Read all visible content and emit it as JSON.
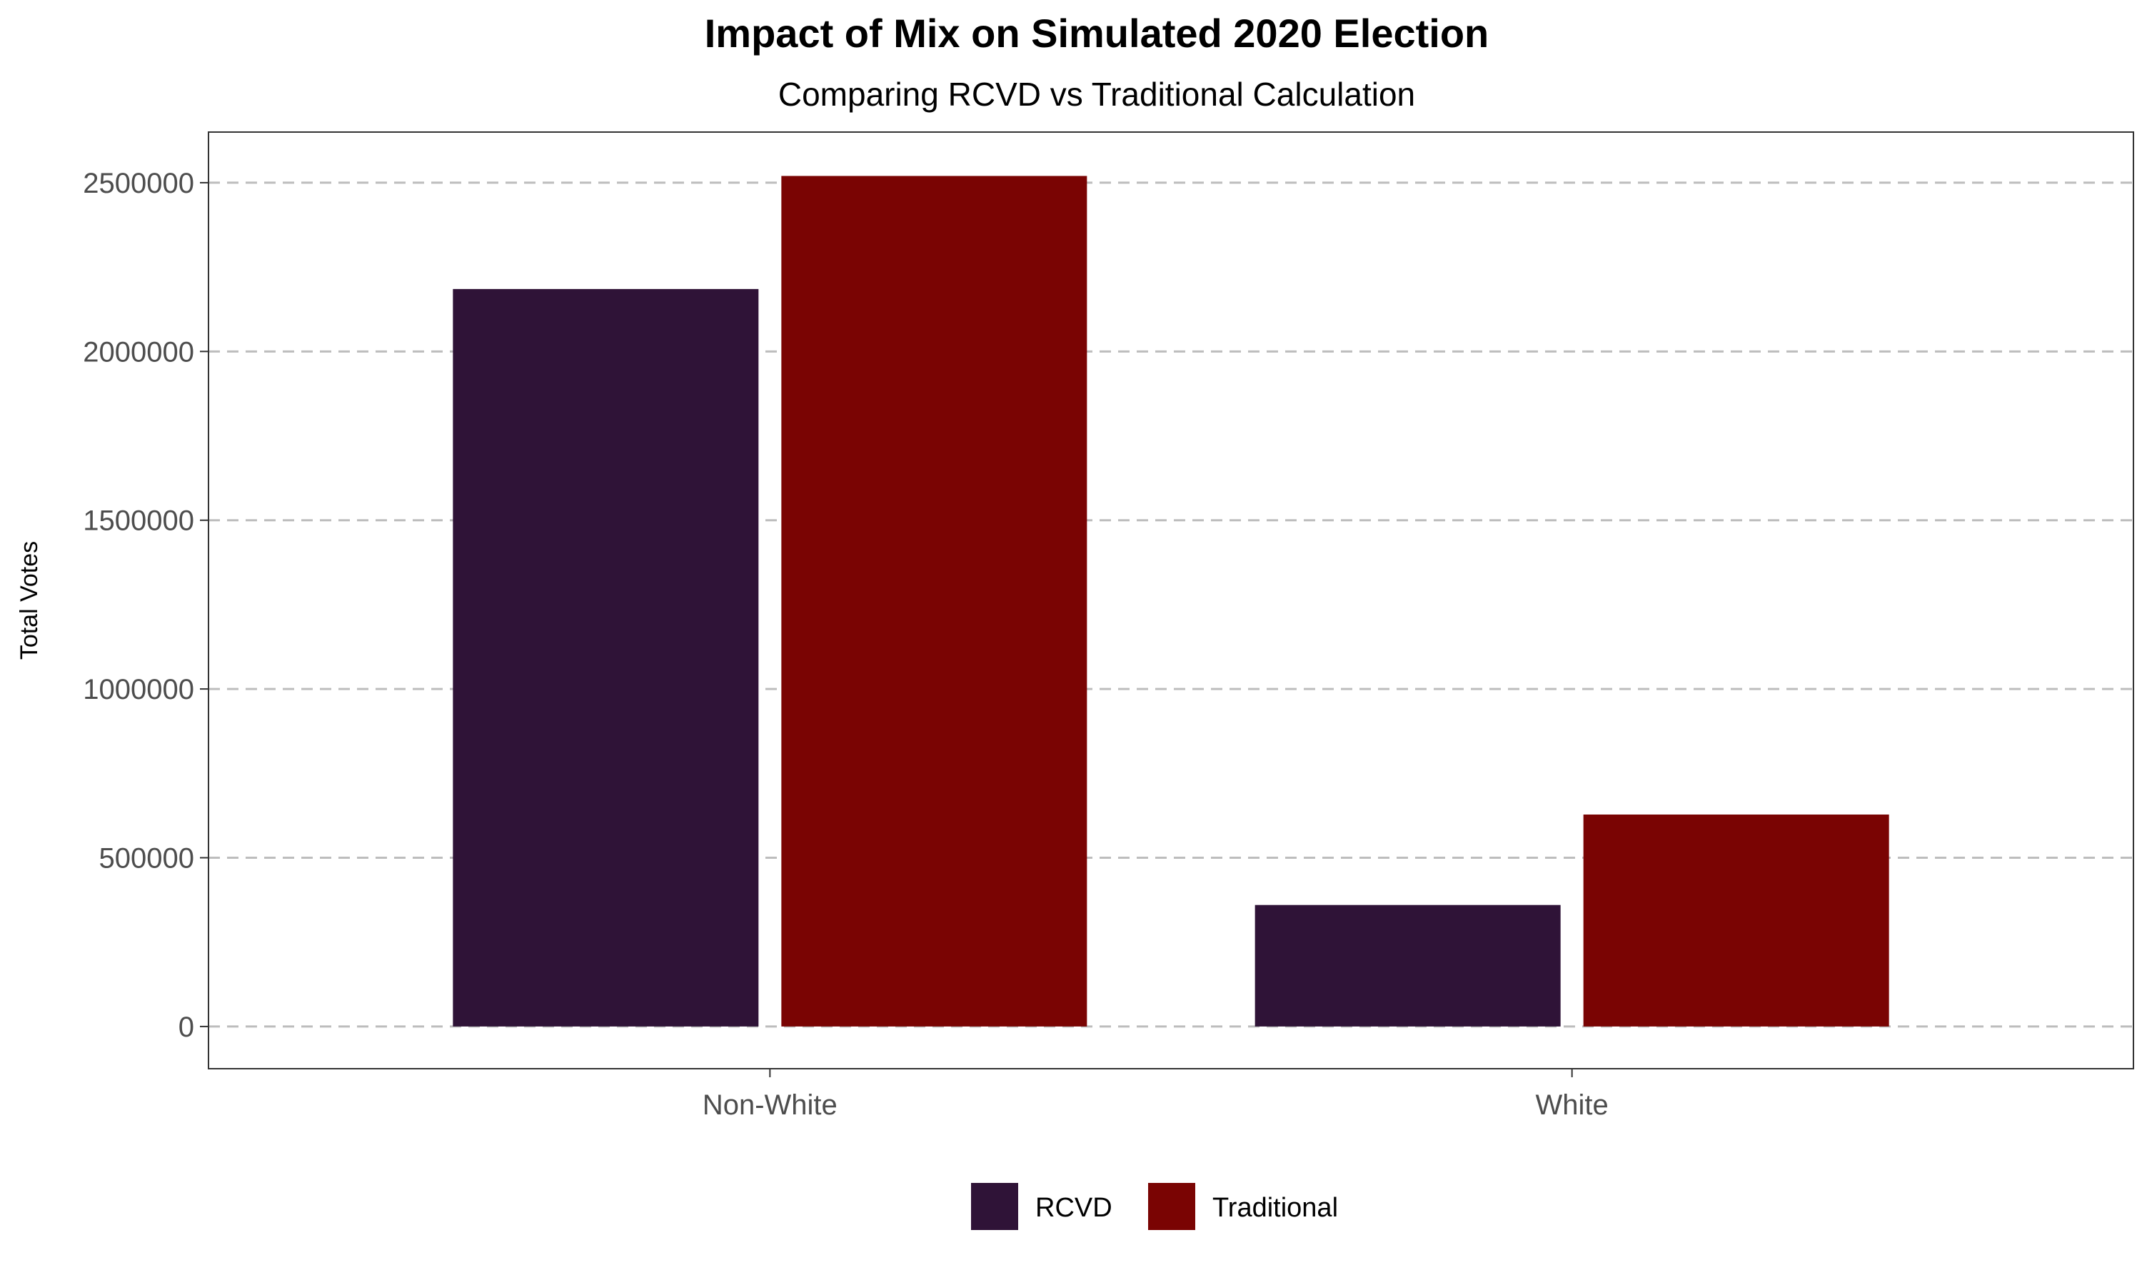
{
  "chart_data": {
    "type": "bar",
    "title": "Impact of Mix on Simulated 2020 Election",
    "subtitle": "Comparing RCVD vs Traditional Calculation",
    "xlabel": "",
    "ylabel": "Total Votes",
    "categories": [
      "Non-White",
      "White"
    ],
    "series": [
      {
        "name": "RCVD",
        "color": "#2f1337",
        "values": [
          2185000,
          360000
        ]
      },
      {
        "name": "Traditional",
        "color": "#7a0403",
        "values": [
          2520000,
          628000
        ]
      }
    ],
    "ylim": [
      -125000,
      2650000
    ],
    "yticks": [
      0,
      500000,
      1000000,
      1500000,
      2000000,
      2500000
    ],
    "ytick_labels": [
      "0",
      "500000",
      "1000000",
      "1500000",
      "2000000",
      "2500000"
    ],
    "grid": "horizontal dashed",
    "legend_position": "bottom"
  }
}
